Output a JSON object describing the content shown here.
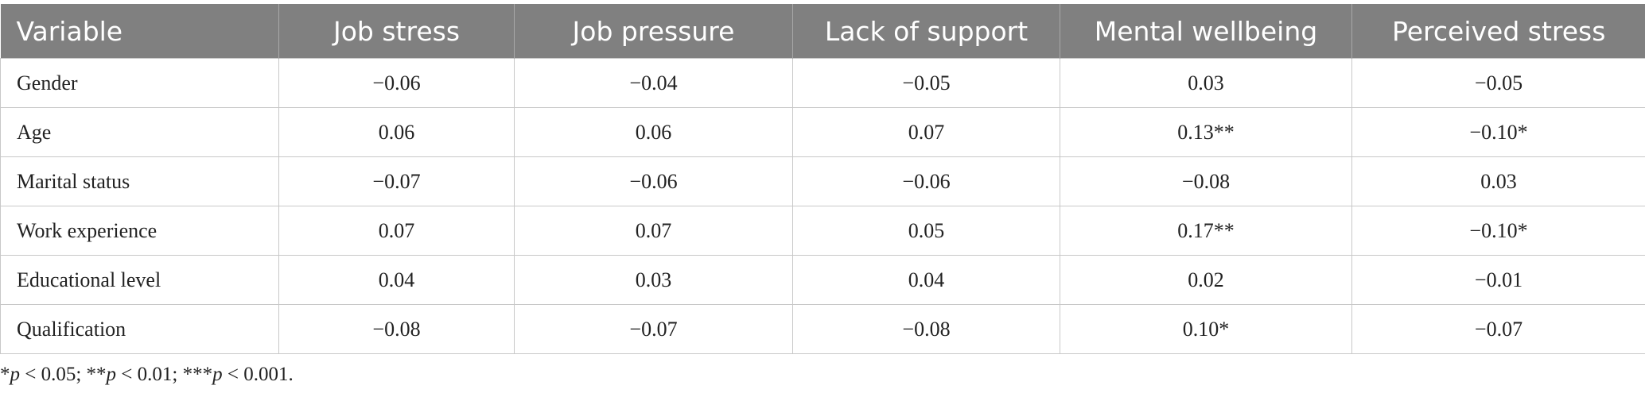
{
  "table": {
    "header": [
      "Variable",
      "Job stress",
      "Job pressure",
      "Lack of support",
      "Mental wellbeing",
      "Perceived stress"
    ],
    "rows": [
      [
        "Gender",
        "−0.06",
        "−0.04",
        "−0.05",
        "0.03",
        "−0.05"
      ],
      [
        "Age",
        "0.06",
        "0.06",
        "0.07",
        "0.13**",
        "−0.10*"
      ],
      [
        "Marital status",
        "−0.07",
        "−0.06",
        "−0.06",
        "−0.08",
        "0.03"
      ],
      [
        "Work experience",
        "0.07",
        "0.07",
        "0.05",
        "0.17**",
        "−0.10*"
      ],
      [
        "Educational level",
        "0.04",
        "0.03",
        "0.04",
        "0.02",
        "−0.01"
      ],
      [
        "Qualification",
        "−0.08",
        "−0.07",
        "−0.08",
        "0.10*",
        "−0.07"
      ]
    ]
  },
  "footnote": [
    "*",
    "p",
    " < 0.05; **",
    "p",
    " < 0.01; ***",
    "p",
    " < 0.001."
  ]
}
